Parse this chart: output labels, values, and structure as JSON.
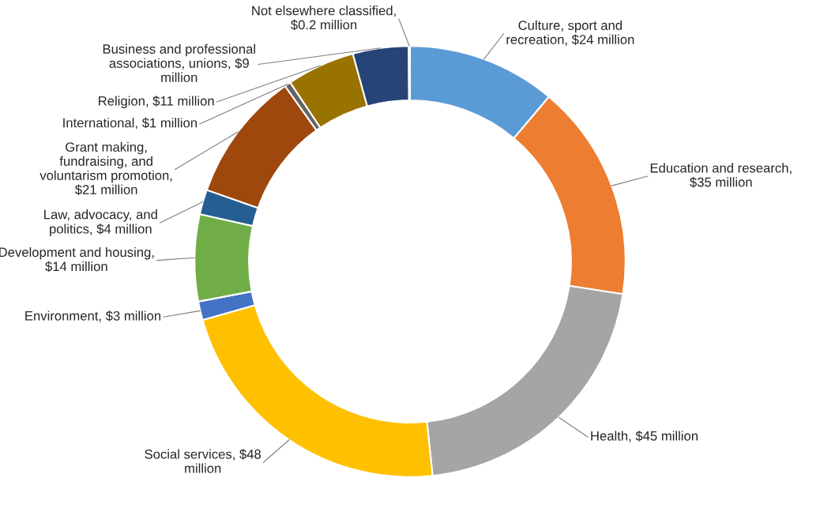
{
  "chart_data": {
    "type": "donut",
    "categories": [
      "Culture, sport and recreation, $24 million",
      "Education and research, $35 million",
      "Health, $45 million",
      "Social services, $48 million",
      "Environment, $3 million",
      "Development and housing, $14 million",
      "Law, advocacy, and politics, $4 million",
      "Grant making, fundraising, and voluntarism promotion, $21 million",
      "International, $1 million",
      "Religion, $11 million",
      "Business and professional associations, unions, $9 million",
      "Not elsewhere classified, $0.2 million"
    ],
    "values": [
      24,
      35,
      45,
      48,
      3,
      14,
      4,
      21,
      1,
      11,
      9,
      0.2
    ],
    "colors": [
      "#5b9bd5",
      "#ed7d31",
      "#a5a5a5",
      "#ffc000",
      "#4472c4",
      "#70ad47",
      "#255e91",
      "#9e480e",
      "#636363",
      "#997300",
      "#264478",
      "#43682b"
    ],
    "legend": false
  }
}
